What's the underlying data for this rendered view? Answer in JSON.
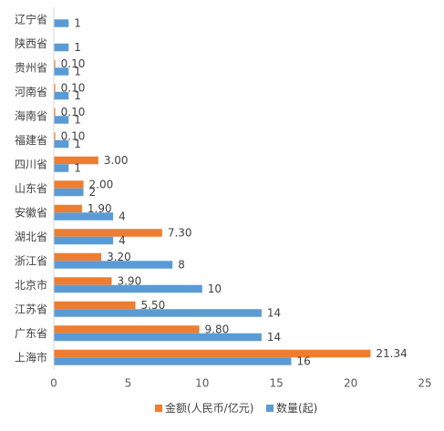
{
  "chart_data": {
    "type": "bar",
    "orientation": "horizontal",
    "categories": [
      "辽宁省",
      "陕西省",
      "贵州省",
      "河南省",
      "海南省",
      "福建省",
      "四川省",
      "山东省",
      "安徽省",
      "湖北省",
      "浙江省",
      "北京市",
      "江苏省",
      "广东省",
      "上海市"
    ],
    "series": [
      {
        "name": "金额(人民币/亿元)",
        "color": "#ED7D31",
        "values": [
          null,
          null,
          0.1,
          0.1,
          0.1,
          0.1,
          3.0,
          2.0,
          1.9,
          7.3,
          3.2,
          3.9,
          5.5,
          9.8,
          21.34
        ],
        "labels": [
          "",
          "",
          "0.10",
          "0.10",
          "0.10",
          "0.10",
          "3.00",
          "2.00",
          "1.90",
          "7.30",
          "3.20",
          "3.90",
          "5.50",
          "9.80",
          "21.34"
        ]
      },
      {
        "name": "数量(起)",
        "color": "#5B9BD5",
        "values": [
          1,
          1,
          1,
          1,
          1,
          1,
          1,
          2,
          4,
          4,
          8,
          10,
          14,
          14,
          16
        ],
        "labels": [
          "1",
          "1",
          "1",
          "1",
          "1",
          "1",
          "1",
          "2",
          "4",
          "4",
          "8",
          "10",
          "14",
          "14",
          "16"
        ]
      }
    ],
    "xlim": [
      0,
      25
    ],
    "xticks": [
      "0",
      "5",
      "10",
      "15",
      "20",
      "25"
    ],
    "grid": false,
    "legend_position": "bottom"
  }
}
